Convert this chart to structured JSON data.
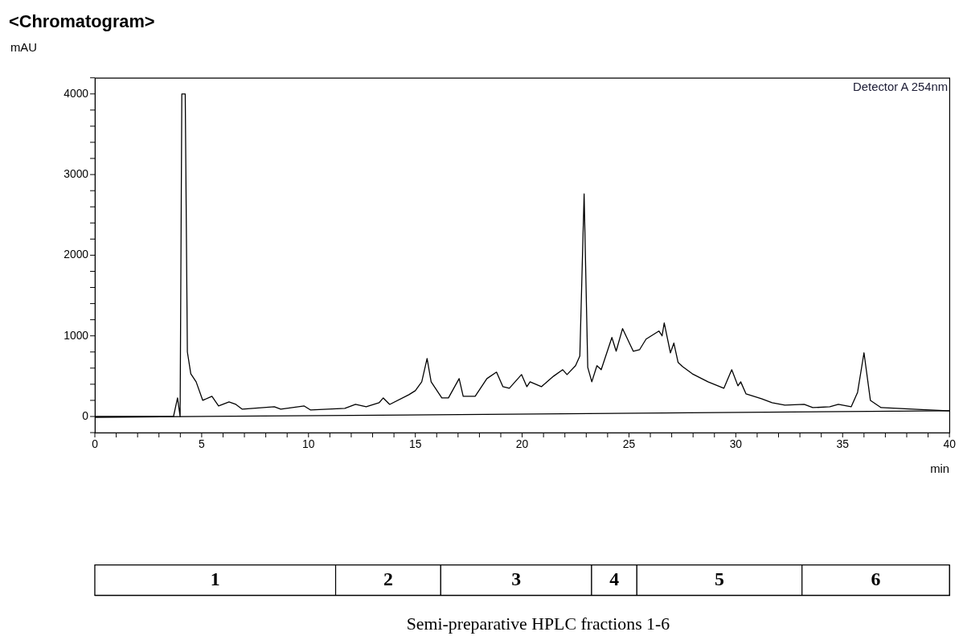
{
  "chart_data": [
    {
      "type": "line",
      "title": "<Chromatogram>",
      "xlabel": "min",
      "ylabel": "mAU",
      "annotations": [
        "Detector A 254nm"
      ],
      "series": [
        {
          "color": "#000000",
          "x": [
            0,
            3.68,
            3.87,
            3.99,
            4.07,
            4.23,
            4.33,
            4.49,
            4.74,
            5.05,
            5.48,
            5.79,
            6.28,
            6.6,
            6.9,
            8.4,
            8.7,
            9.8,
            10.1,
            11.7,
            12.2,
            12.7,
            13.3,
            13.5,
            13.8,
            14.7,
            15.0,
            15.3,
            15.55,
            15.74,
            16.24,
            16.55,
            17.05,
            17.24,
            17.8,
            18.35,
            18.8,
            19.1,
            19.4,
            19.97,
            20.22,
            20.37,
            20.9,
            21.47,
            21.9,
            22.1,
            22.5,
            22.7,
            22.9,
            23.07,
            23.26,
            23.5,
            23.7,
            24.2,
            24.4,
            24.7,
            25.2,
            25.5,
            25.8,
            26.4,
            26.55,
            26.65,
            26.94,
            27.1,
            27.3,
            27.5,
            27.96,
            28.7,
            29.44,
            29.81,
            30.1,
            30.23,
            30.48,
            31.2,
            31.7,
            32.3,
            33.2,
            33.6,
            34.4,
            34.8,
            35.4,
            35.7,
            36.0,
            36.3,
            36.8,
            39.9,
            40
          ],
          "values": [
            0,
            0,
            230,
            0,
            4000,
            4000,
            800,
            530,
            430,
            200,
            250,
            130,
            180,
            150,
            90,
            120,
            90,
            130,
            80,
            100,
            150,
            120,
            170,
            230,
            150,
            270,
            320,
            430,
            720,
            430,
            230,
            230,
            470,
            250,
            250,
            470,
            550,
            370,
            350,
            520,
            370,
            430,
            370,
            500,
            580,
            520,
            630,
            750,
            2760,
            610,
            430,
            630,
            580,
            980,
            810,
            1090,
            810,
            830,
            960,
            1060,
            1000,
            1160,
            790,
            910,
            670,
            620,
            530,
            430,
            350,
            580,
            380,
            430,
            280,
            220,
            170,
            140,
            150,
            110,
            120,
            150,
            120,
            300,
            790,
            200,
            110,
            70,
            70
          ]
        },
        {
          "color": "#000000",
          "x": [
            0,
            40
          ],
          "values": [
            -10,
            70
          ]
        }
      ],
      "xlim": [
        0,
        40
      ],
      "ylim": [
        -200,
        4200
      ],
      "xticks": [
        0,
        {
          "value": 1,
          "label": null
        },
        {
          "value": 2,
          "label": null
        },
        {
          "value": 3,
          "label": null
        },
        {
          "value": 4,
          "label": null
        },
        5,
        {
          "value": 6,
          "label": null
        },
        {
          "value": 7,
          "label": null
        },
        {
          "value": 8,
          "label": null
        },
        {
          "value": 9,
          "label": null
        },
        10,
        {
          "value": 11,
          "label": null
        },
        {
          "value": 12,
          "label": null
        },
        {
          "value": 13,
          "label": null
        },
        {
          "value": 14,
          "label": null
        },
        15,
        {
          "value": 16,
          "label": null
        },
        {
          "value": 17,
          "label": null
        },
        {
          "value": 18,
          "label": null
        },
        {
          "value": 19,
          "label": null
        },
        20,
        {
          "value": 21,
          "label": null
        },
        {
          "value": 22,
          "label": null
        },
        {
          "value": 23,
          "label": null
        },
        {
          "value": 24,
          "label": null
        },
        25,
        {
          "value": 26,
          "label": null
        },
        {
          "value": 27,
          "label": null
        },
        {
          "value": 28,
          "label": null
        },
        {
          "value": 29,
          "label": null
        },
        30,
        {
          "value": 31,
          "label": null
        },
        {
          "value": 32,
          "label": null
        },
        {
          "value": 33,
          "label": null
        },
        {
          "value": 34,
          "label": null
        },
        35,
        {
          "value": 36,
          "label": null
        },
        {
          "value": 37,
          "label": null
        },
        {
          "value": 38,
          "label": null
        },
        {
          "value": 39,
          "label": null
        },
        40
      ],
      "yticks": [
        {
          "value": -200,
          "label": null
        },
        0,
        {
          "value": 200,
          "label": null
        },
        {
          "value": 400,
          "label": null
        },
        {
          "value": 600,
          "label": null
        },
        {
          "value": 800,
          "label": null
        },
        1000,
        {
          "value": 1200,
          "label": null
        },
        {
          "value": 1400,
          "label": null
        },
        {
          "value": 1600,
          "label": null
        },
        {
          "value": 1800,
          "label": null
        },
        2000,
        {
          "value": 2200,
          "label": null
        },
        {
          "value": 2400,
          "label": null
        },
        {
          "value": 2600,
          "label": null
        },
        {
          "value": 2800,
          "label": null
        },
        3000,
        {
          "value": 3200,
          "label": null
        },
        {
          "value": 3400,
          "label": null
        },
        {
          "value": 3600,
          "label": null
        },
        {
          "value": 3800,
          "label": null
        },
        4000,
        {
          "value": 4200,
          "label": null
        }
      ],
      "grid": false,
      "line_style": "solid"
    },
    {
      "type": "bar",
      "orientation": "horizontal",
      "stacked": true,
      "categories": [
        null
      ],
      "xlim": [
        0,
        40
      ],
      "tick_labels": false,
      "annotations": [
        "Semi-preparative HPLC fractions 1-6"
      ],
      "series": [
        {
          "name": "1",
          "color": "#ffffff",
          "values": [
            11.27
          ]
        },
        {
          "name": "2",
          "color": "#ffffff",
          "values": [
            4.92
          ]
        },
        {
          "name": "3",
          "color": "#ffffff",
          "values": [
            7.06
          ]
        },
        {
          "name": "4",
          "color": "#ffffff",
          "values": [
            2.12
          ]
        },
        {
          "name": "5",
          "color": "#ffffff",
          "values": [
            7.73
          ]
        },
        {
          "name": "6",
          "color": "#ffffff",
          "values": [
            6.9
          ]
        }
      ]
    }
  ]
}
